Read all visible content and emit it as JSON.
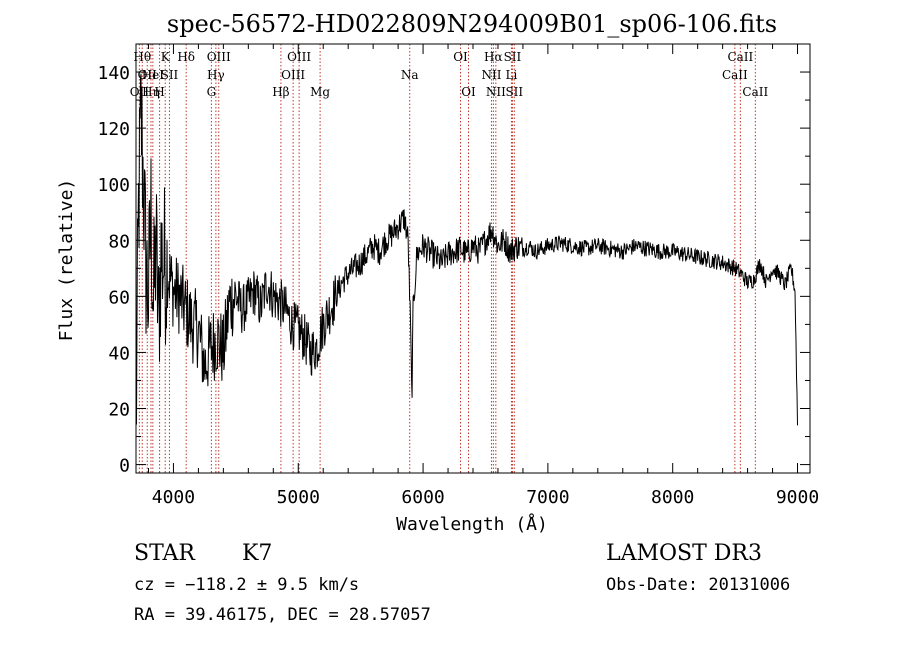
{
  "chart_data": {
    "type": "line",
    "title": "spec-56572-HD022809N294009B01_sp06-106.fits",
    "xlabel": "Wavelength (Å)",
    "ylabel": "Flux (relative)",
    "xlim": [
      3700,
      9100
    ],
    "ylim": [
      -3,
      150
    ],
    "xticks": [
      4000,
      5000,
      6000,
      7000,
      8000,
      9000
    ],
    "yticks": [
      0,
      20,
      40,
      60,
      80,
      100,
      120,
      140
    ],
    "grid": false,
    "line_color": "#000000",
    "marker_color": "#c0392b",
    "series": [
      {
        "name": "flux",
        "x": [
          3700,
          3720,
          3740,
          3760,
          3780,
          3800,
          3820,
          3840,
          3860,
          3880,
          3900,
          3950,
          4000,
          4050,
          4100,
          4150,
          4200,
          4250,
          4300,
          4350,
          4400,
          4450,
          4500,
          4550,
          4600,
          4650,
          4700,
          4750,
          4800,
          4850,
          4900,
          4950,
          5000,
          5050,
          5100,
          5150,
          5200,
          5250,
          5300,
          5350,
          5400,
          5450,
          5500,
          5550,
          5600,
          5650,
          5700,
          5750,
          5800,
          5850,
          5880,
          5900,
          5910,
          5920,
          5950,
          6000,
          6050,
          6100,
          6150,
          6200,
          6250,
          6300,
          6350,
          6400,
          6450,
          6500,
          6550,
          6600,
          6650,
          6700,
          6750,
          6800,
          6850,
          6900,
          6950,
          7000,
          7100,
          7200,
          7300,
          7400,
          7500,
          7600,
          7700,
          7800,
          7900,
          8000,
          8100,
          8200,
          8300,
          8400,
          8500,
          8550,
          8600,
          8650,
          8700,
          8750,
          8800,
          8850,
          8900,
          8950,
          8980,
          9000
        ],
        "values": [
          10,
          90,
          125,
          100,
          70,
          60,
          90,
          55,
          80,
          50,
          75,
          70,
          62,
          60,
          55,
          50,
          48,
          35,
          42,
          45,
          40,
          58,
          60,
          55,
          58,
          62,
          56,
          65,
          60,
          58,
          55,
          50,
          48,
          45,
          40,
          42,
          50,
          55,
          60,
          65,
          68,
          70,
          72,
          75,
          78,
          76,
          80,
          82,
          85,
          88,
          80,
          48,
          22,
          55,
          75,
          78,
          76,
          74,
          72,
          75,
          76,
          77,
          75,
          78,
          76,
          80,
          84,
          78,
          80,
          76,
          78,
          77,
          78,
          76,
          77,
          78,
          79,
          78,
          77,
          78,
          77,
          76,
          78,
          77,
          76,
          76,
          75,
          74,
          73,
          72,
          70,
          68,
          65,
          66,
          72,
          65,
          70,
          68,
          64,
          70,
          62,
          15
        ]
      }
    ],
    "line_markers": [
      {
        "x": 3727,
        "label": "OII",
        "row": 3
      },
      {
        "x": 3750,
        "label": "Hθ",
        "row": 1
      },
      {
        "x": 3790,
        "label": "OII",
        "row": 2
      },
      {
        "x": 3820,
        "label": "Hη",
        "row": 3
      },
      {
        "x": 3835,
        "label": "HeI",
        "row": 2
      },
      {
        "x": 3889,
        "label": "H",
        "row": 3
      },
      {
        "x": 3934,
        "label": "K",
        "row": 1
      },
      {
        "x": 3968,
        "label": "SII",
        "row": 2
      },
      {
        "x": 4102,
        "label": "Hδ",
        "row": 1
      },
      {
        "x": 4304,
        "label": "G",
        "row": 3
      },
      {
        "x": 4340,
        "label": "Hγ",
        "row": 2
      },
      {
        "x": 4363,
        "label": "OIII",
        "row": 1
      },
      {
        "x": 4861,
        "label": "Hβ",
        "row": 3
      },
      {
        "x": 4959,
        "label": "OIII",
        "row": 2
      },
      {
        "x": 5007,
        "label": "OIII",
        "row": 1
      },
      {
        "x": 5175,
        "label": "Mg",
        "row": 3
      },
      {
        "x": 5893,
        "label": "Na",
        "row": 2
      },
      {
        "x": 6300,
        "label": "OI",
        "row": 1
      },
      {
        "x": 6364,
        "label": "OI",
        "row": 3
      },
      {
        "x": 6548,
        "label": "NII",
        "row": 2
      },
      {
        "x": 6563,
        "label": "Hα",
        "row": 1
      },
      {
        "x": 6583,
        "label": "NII",
        "row": 3
      },
      {
        "x": 6708,
        "label": "Li",
        "row": 2
      },
      {
        "x": 6716,
        "label": "SII",
        "row": 1
      },
      {
        "x": 6731,
        "label": "SII",
        "row": 3
      },
      {
        "x": 8498,
        "label": "CaII",
        "row": 2
      },
      {
        "x": 8542,
        "label": "CaII",
        "row": 1
      },
      {
        "x": 8662,
        "label": "CaII",
        "row": 3
      }
    ]
  },
  "info": {
    "object_class": "STAR",
    "subclass": "K7",
    "survey": "LAMOST DR3",
    "cz_line": "cz = −118.2 ± 9.5 km/s",
    "obs_date": "Obs-Date: 20131006",
    "coords": "RA =  39.46175, DEC =  28.57057"
  }
}
